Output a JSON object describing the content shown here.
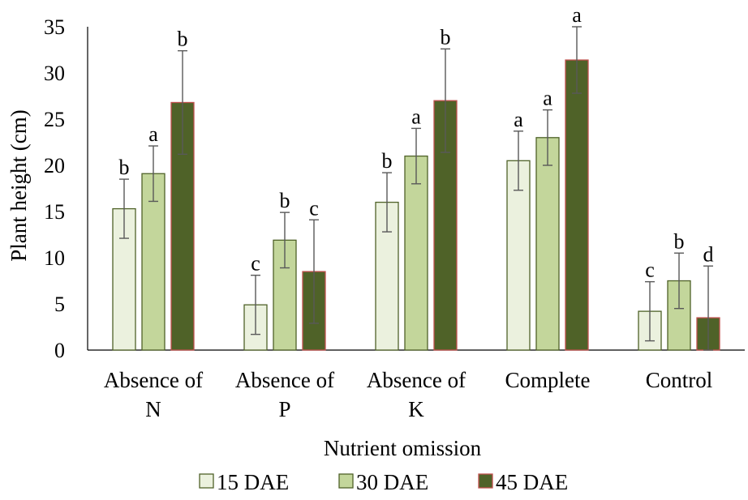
{
  "chart_data": {
    "type": "bar",
    "title": "",
    "xlabel": "Nutrient omission",
    "ylabel": "Plant height (cm)",
    "ylim": [
      0,
      35
    ],
    "yticks": [
      0,
      5,
      10,
      15,
      20,
      25,
      30,
      35
    ],
    "grid": false,
    "legend_position": "bottom",
    "categories": [
      [
        "Absence of",
        "N"
      ],
      [
        "Absence of",
        "P"
      ],
      [
        "Absence of",
        "K"
      ],
      [
        "Complete"
      ],
      [
        "Control"
      ]
    ],
    "series": [
      {
        "name": "15 DAE",
        "color": "#ebf1de",
        "edge": "#4f6228",
        "values": [
          15.3,
          4.9,
          16.0,
          20.5,
          4.2
        ],
        "error": [
          3.2,
          3.2,
          3.2,
          3.2,
          3.2
        ],
        "letters": [
          "b",
          "c",
          "b",
          "a",
          "c"
        ]
      },
      {
        "name": "30 DAE",
        "color": "#c3d69b",
        "edge": "#4f6228",
        "values": [
          19.1,
          11.9,
          21.0,
          23.0,
          7.5
        ],
        "error": [
          3.0,
          3.0,
          3.0,
          3.0,
          3.0
        ],
        "letters": [
          "a",
          "b",
          "a",
          "a",
          "b"
        ]
      },
      {
        "name": "45 DAE",
        "color": "#4f6228",
        "edge": "#c0504d",
        "values": [
          26.8,
          8.5,
          27.0,
          31.4,
          3.5
        ],
        "error": [
          5.6,
          5.6,
          5.6,
          3.6,
          5.6
        ],
        "letters": [
          "b",
          "c",
          "b",
          "a",
          "d"
        ]
      }
    ]
  }
}
